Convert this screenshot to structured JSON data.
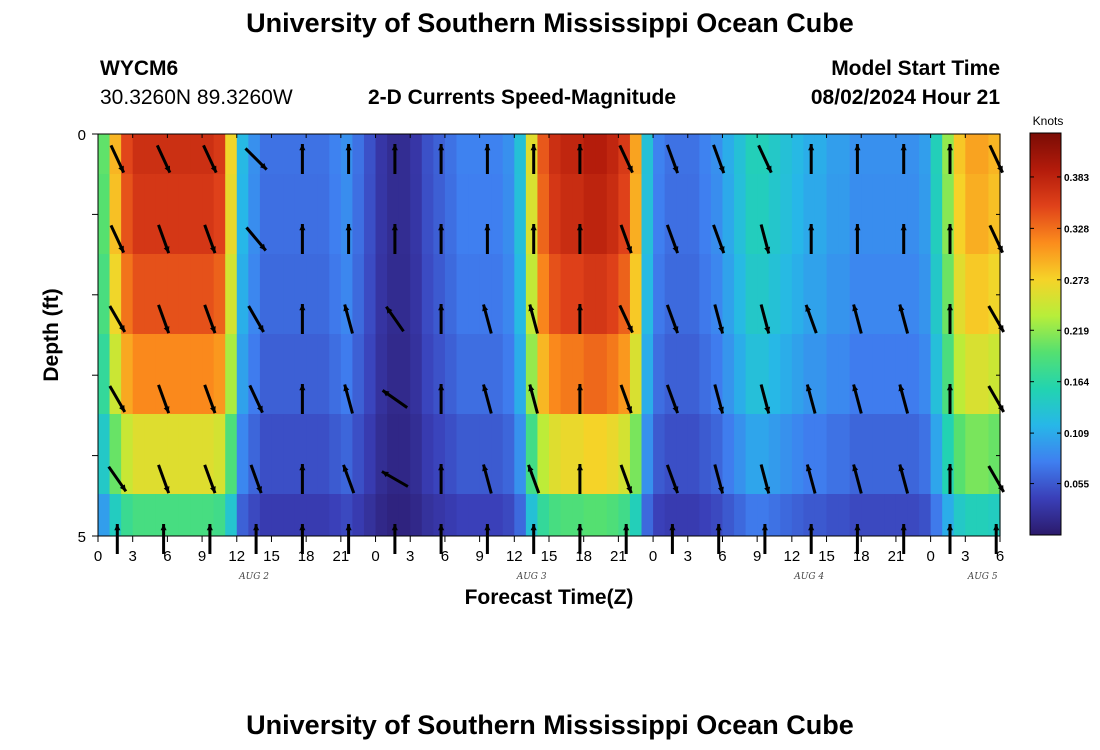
{
  "page": {
    "title": "University of Southern Mississippi Ocean Cube",
    "title_bottom": "University of Southern Mississippi Ocean Cube",
    "station_id": "WYCM6",
    "station_coords": "30.3260N  89.3260W",
    "plot_title": "2-D Currents Speed-Magnitude",
    "model_start_label": "Model Start Time",
    "model_start_value": "08/02/2024 Hour 21"
  },
  "colors": {
    "colormap": [
      "#2b1a6b",
      "#3a3fb8",
      "#3f7ff0",
      "#27b7e8",
      "#22d4b0",
      "#55e070",
      "#b7ee3a",
      "#f6d328",
      "#fb8c1c",
      "#e0421a",
      "#b31b0b",
      "#7a0c05"
    ],
    "arrow": "#000000"
  },
  "chart_data": {
    "type": "heatmap",
    "title": "2-D Currents Speed-Magnitude",
    "xlabel": "Forecast Time(Z)",
    "ylabel": "Depth (ft)",
    "ylim": [
      0,
      5
    ],
    "colorbar_label": "Knots",
    "colorbar_ticks": [
      "0.383",
      "0.328",
      "0.273",
      "0.219",
      "0.164",
      "0.109",
      "0.055"
    ],
    "colorbar_range": [
      0,
      0.43
    ],
    "x_tick_labels": [
      "0",
      "3",
      "6",
      "9",
      "12",
      "15",
      "18",
      "21",
      "0",
      "3",
      "6",
      "9",
      "12",
      "15",
      "18",
      "21",
      "0",
      "3",
      "6",
      "9",
      "12",
      "15",
      "18",
      "21",
      "0",
      "3",
      "6"
    ],
    "day_labels": [
      {
        "label": "AUG 2",
        "tick_index": 4.5
      },
      {
        "label": "AUG 3",
        "tick_index": 12.5
      },
      {
        "label": "AUG 4",
        "tick_index": 20.5
      },
      {
        "label": "AUG 5",
        "tick_index": 25.5
      }
    ],
    "y_tick_labels": [
      "0",
      "5"
    ],
    "n_hours": 78,
    "depth_rows": 5,
    "speed_profile_by_hour": [
      0.2,
      0.29,
      0.35,
      0.37,
      0.37,
      0.37,
      0.37,
      0.37,
      0.37,
      0.37,
      0.36,
      0.27,
      0.12,
      0.09,
      0.07,
      0.07,
      0.07,
      0.07,
      0.07,
      0.07,
      0.08,
      0.09,
      0.07,
      0.05,
      0.03,
      0.02,
      0.02,
      0.03,
      0.05,
      0.06,
      0.07,
      0.08,
      0.08,
      0.08,
      0.08,
      0.09,
      0.13,
      0.26,
      0.34,
      0.37,
      0.38,
      0.38,
      0.39,
      0.39,
      0.38,
      0.36,
      0.3,
      0.13,
      0.08,
      0.07,
      0.07,
      0.07,
      0.08,
      0.09,
      0.11,
      0.13,
      0.15,
      0.15,
      0.14,
      0.13,
      0.12,
      0.11,
      0.11,
      0.1,
      0.1,
      0.09,
      0.09,
      0.09,
      0.09,
      0.09,
      0.09,
      0.1,
      0.15,
      0.22,
      0.28,
      0.3,
      0.3,
      0.29
    ],
    "depth_factor": [
      1.0,
      0.98,
      0.93,
      0.85,
      0.7,
      0.5
    ],
    "arrow_hours": [
      1,
      5,
      9,
      13,
      17,
      21,
      25,
      29,
      33,
      37,
      41,
      45,
      49,
      53,
      57,
      61,
      65,
      69,
      73,
      77
    ],
    "arrow_angles_deg": [
      [
        155,
        155,
        155,
        135,
        0,
        0,
        0,
        0,
        0,
        0,
        0,
        155,
        160,
        160,
        155,
        0,
        0,
        0,
        0,
        155
      ],
      [
        155,
        160,
        160,
        140,
        0,
        0,
        0,
        0,
        0,
        0,
        0,
        160,
        160,
        160,
        165,
        0,
        0,
        0,
        0,
        155
      ],
      [
        150,
        160,
        160,
        150,
        0,
        345,
        325,
        0,
        345,
        345,
        0,
        155,
        160,
        165,
        165,
        340,
        345,
        345,
        0,
        150
      ],
      [
        150,
        160,
        160,
        155,
        0,
        345,
        305,
        0,
        345,
        345,
        0,
        160,
        160,
        165,
        165,
        345,
        345,
        345,
        0,
        150
      ],
      [
        145,
        160,
        160,
        160,
        0,
        340,
        300,
        0,
        345,
        340,
        0,
        160,
        160,
        165,
        165,
        345,
        345,
        345,
        0,
        150
      ],
      [
        0,
        0,
        0,
        0,
        0,
        0,
        0,
        0,
        0,
        0,
        0,
        0,
        0,
        0,
        0,
        0,
        0,
        0,
        0,
        0
      ]
    ]
  }
}
